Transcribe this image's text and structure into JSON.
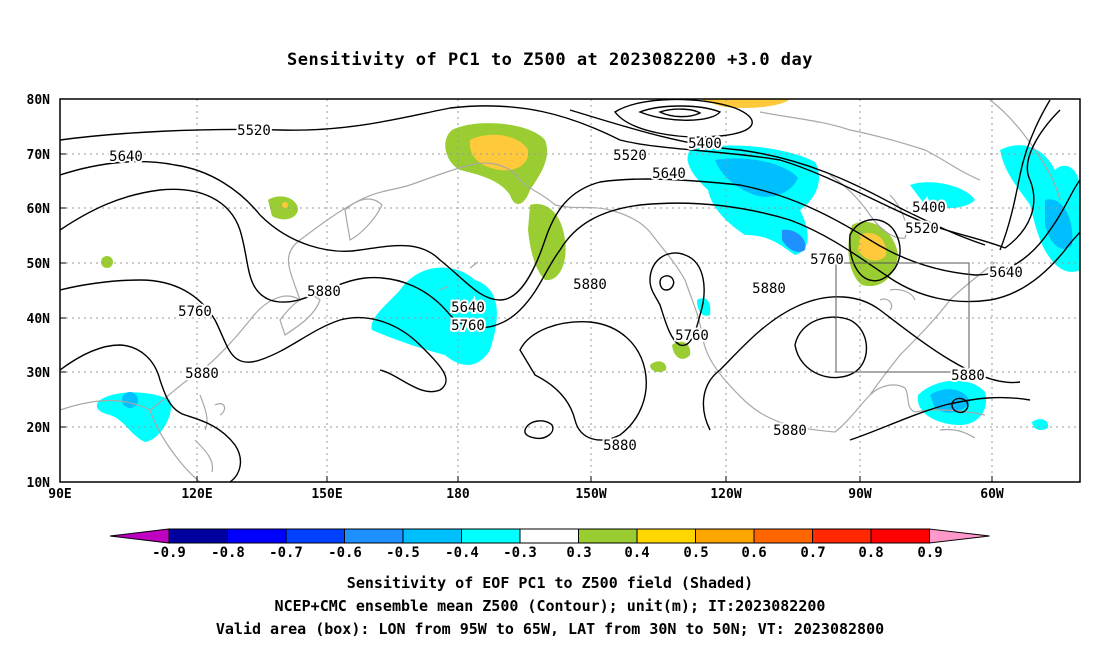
{
  "title": "Sensitivity of PC1 to Z500 at 2023082200 +3.0 day",
  "lat_labels": [
    "80N",
    "70N",
    "60N",
    "50N",
    "40N",
    "30N",
    "20N",
    "10N"
  ],
  "lon_labels": [
    "90E",
    "120E",
    "150E",
    "180",
    "150W",
    "120W",
    "90W",
    "60W"
  ],
  "contour_labels": [
    {
      "text": "5520",
      "name": "contour-label-5520-pacific"
    },
    {
      "text": "5640",
      "name": "contour-label-5640-west"
    },
    {
      "text": "5760",
      "name": "contour-label-5760-west"
    },
    {
      "text": "5880",
      "name": "contour-label-5880-asia"
    },
    {
      "text": "5880",
      "name": "contour-label-5880-nw-pacific"
    },
    {
      "text": "5640",
      "name": "contour-label-5640-dateline"
    },
    {
      "text": "5760",
      "name": "contour-label-5760-dateline"
    },
    {
      "text": "5880",
      "name": "contour-label-5880-east-pacific"
    },
    {
      "text": "5520",
      "name": "contour-label-5520-alaska"
    },
    {
      "text": "5400",
      "name": "contour-label-5400-arctic"
    },
    {
      "text": "5640",
      "name": "contour-label-5640-canada"
    },
    {
      "text": "5760",
      "name": "contour-label-5760-low"
    },
    {
      "text": "5880",
      "name": "contour-label-5880-low"
    },
    {
      "text": "5880",
      "name": "contour-label-5880-us"
    },
    {
      "text": "5760",
      "name": "contour-label-5760-east"
    },
    {
      "text": "5400",
      "name": "contour-label-5400-east"
    },
    {
      "text": "5520",
      "name": "contour-label-5520-east"
    },
    {
      "text": "5640",
      "name": "contour-label-5640-east"
    },
    {
      "text": "5880",
      "name": "contour-label-5880-atlantic"
    },
    {
      "text": "5880",
      "name": "contour-label-5880-mexico"
    }
  ],
  "colorbar": {
    "labels": [
      "-0.9",
      "-0.8",
      "-0.7",
      "-0.6",
      "-0.5",
      "-0.4",
      "-0.3",
      "0.3",
      "0.4",
      "0.5",
      "0.6",
      "0.7",
      "0.8",
      "0.9"
    ],
    "colors": [
      "#c000c0",
      "#0000a0",
      "#0000ff",
      "#0040ff",
      "#1e90ff",
      "#00bfff",
      "#00ffff",
      "#ffffff",
      "#9acd32",
      "#ffd700",
      "#ffa500",
      "#ff6600",
      "#ff2800",
      "#ff0000",
      "#ff99cc"
    ]
  },
  "shading_colors": {
    "positive_low": "#9acd32",
    "positive_mid": "#ffc93c",
    "negative_low": "#00ffff",
    "negative_mid": "#00bfff",
    "negative_high": "#1e90ff"
  },
  "captions": [
    "Sensitivity of EOF PC1 to Z500 field (Shaded)",
    "NCEP+CMC ensemble mean Z500 (Contour); unit(m); IT:2023082200",
    "Valid area (box): LON from 95W to 65W, LAT from 30N to 50N; VT: 2023082800"
  ],
  "valid_box": {
    "lon_min": -95,
    "lon_max": -65,
    "lat_min": 30,
    "lat_max": 50
  }
}
